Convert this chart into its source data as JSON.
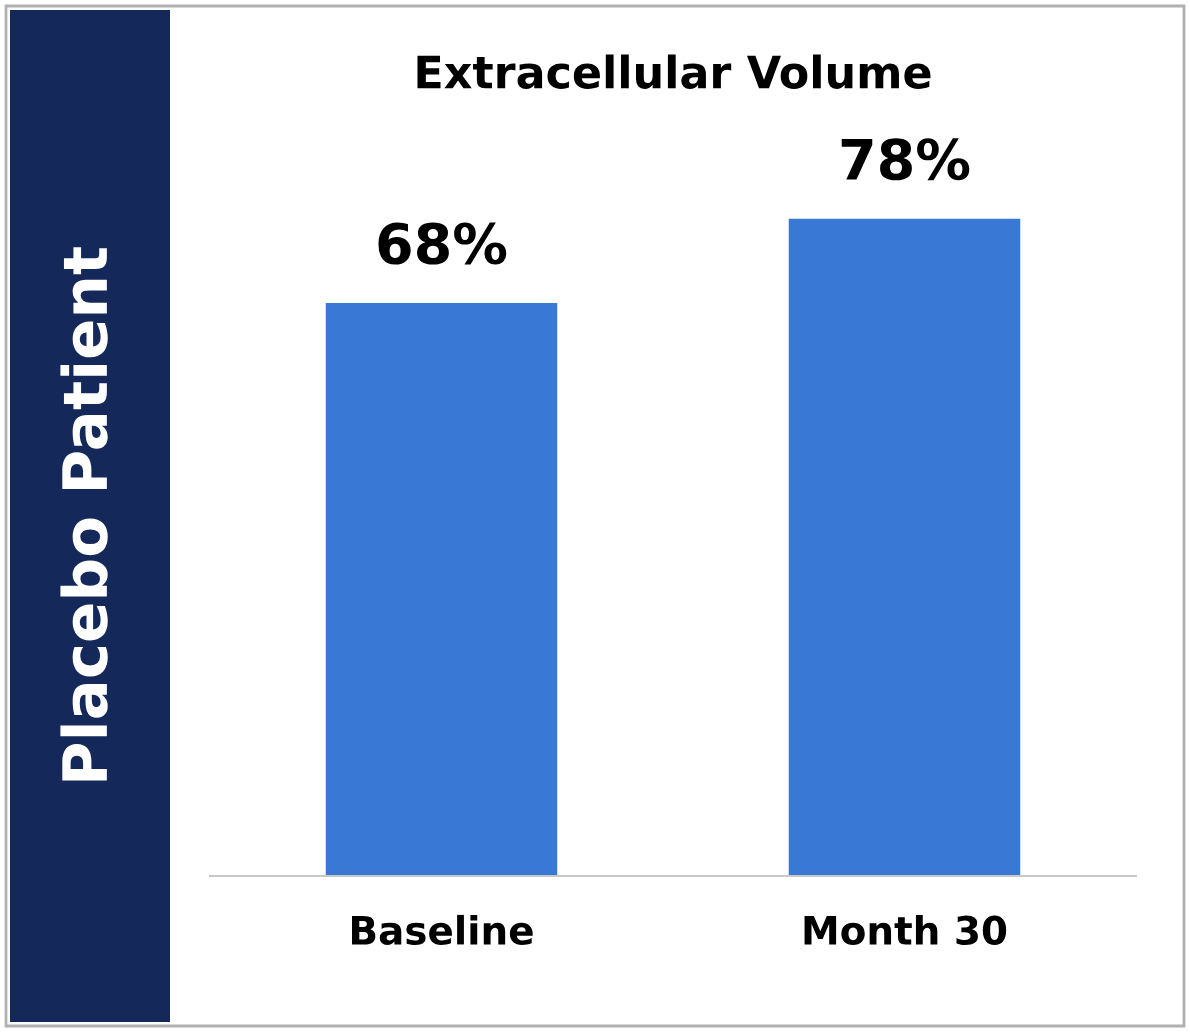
{
  "chart_data": {
    "type": "bar",
    "title": "Extracellular Volume",
    "ylabel": "Placebo Patient",
    "categories": [
      "Baseline",
      "Month 30"
    ],
    "values": [
      68,
      78
    ],
    "color": "#3a78d6",
    "value_labels": [
      "68%",
      "78%"
    ],
    "tick_labels": "x",
    "grid": false,
    "legend": false
  }
}
